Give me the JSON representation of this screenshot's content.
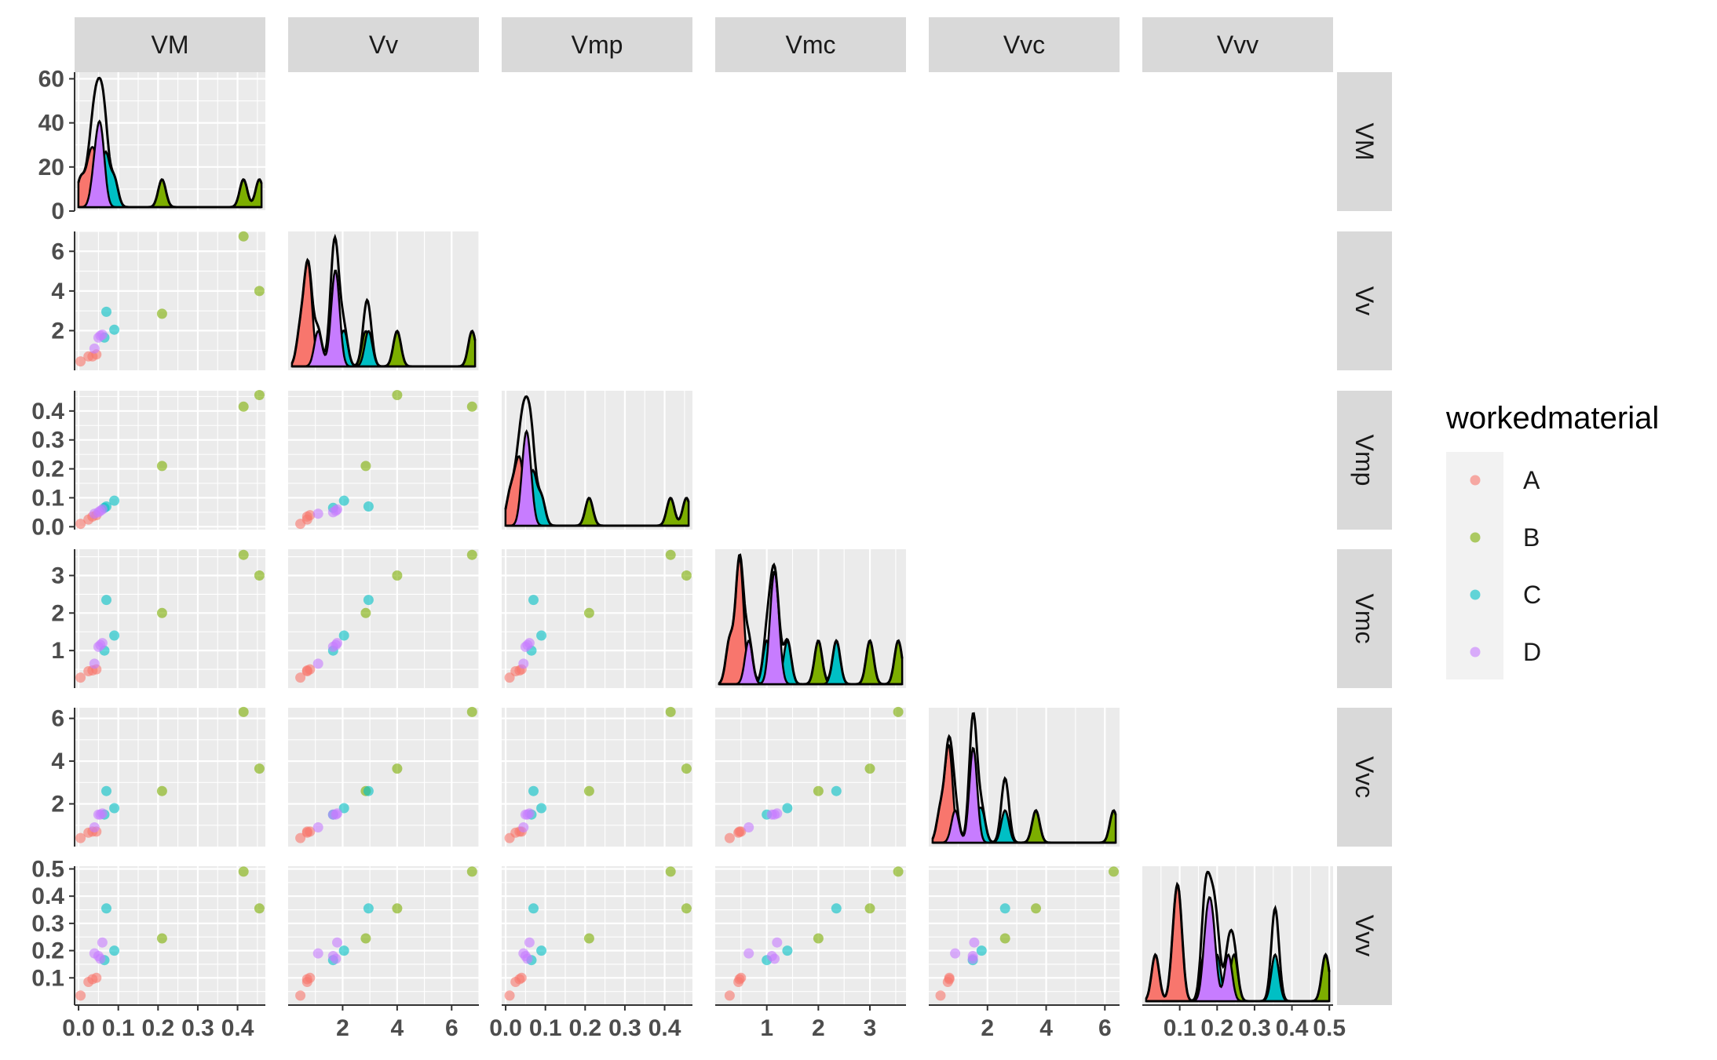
{
  "chart_data": {
    "type": "scatter",
    "variables": [
      "VM",
      "Vv",
      "Vmp",
      "Vmc",
      "Vvc",
      "Vvv"
    ],
    "layout": "lower-triangle scatterplot matrix with density plots on the diagonal",
    "legend": {
      "title": "workedmaterial",
      "placement": "right",
      "labels": [
        "A",
        "B",
        "C",
        "D"
      ]
    },
    "colors": {
      "A": "#F8766D",
      "B": "#7CAE00",
      "C": "#00BFC4",
      "D": "#C77CFF"
    },
    "panel_background": "#EBEBEB",
    "strip_background": "#D9D9D9",
    "grid": true,
    "axes": {
      "VM": {
        "range": [
          -0.01,
          0.47
        ],
        "ticks": [
          0.0,
          0.1,
          0.2,
          0.3,
          0.4
        ],
        "tick_labels": [
          "0.0",
          "0.1",
          "0.2",
          "0.3",
          "0.4"
        ]
      },
      "Vv": {
        "range": [
          0.0,
          7.0
        ],
        "ticks": [
          2,
          4,
          6
        ],
        "tick_labels": [
          "2",
          "4",
          "6"
        ]
      },
      "Vmp": {
        "range": [
          -0.01,
          0.47
        ],
        "ticks": [
          0.0,
          0.1,
          0.2,
          0.3,
          0.4
        ],
        "tick_labels": [
          "0.0",
          "0.1",
          "0.2",
          "0.3",
          "0.4"
        ]
      },
      "Vmc": {
        "range": [
          0.0,
          3.7
        ],
        "ticks": [
          1,
          2,
          3
        ],
        "tick_labels": [
          "1",
          "2",
          "3"
        ]
      },
      "Vvc": {
        "range": [
          0.0,
          6.5
        ],
        "ticks": [
          2,
          4,
          6
        ],
        "tick_labels": [
          "2",
          "4",
          "6"
        ]
      },
      "Vvv": {
        "range": [
          0.0,
          0.51
        ],
        "ticks": [
          0.1,
          0.2,
          0.3,
          0.4,
          0.5
        ],
        "tick_labels": [
          "0.1",
          "0.2",
          "0.3",
          "0.4",
          "0.5"
        ]
      }
    },
    "density_axis": {
      "range": [
        0,
        63
      ],
      "ticks": [
        0,
        20,
        40,
        60
      ],
      "tick_labels": [
        "0",
        "20",
        "40",
        "60"
      ]
    },
    "points": [
      {
        "group": "A",
        "VM": 0.005,
        "Vv": 0.45,
        "Vmp": 0.01,
        "Vmc": 0.28,
        "Vvc": 0.4,
        "Vvv": 0.035
      },
      {
        "group": "A",
        "VM": 0.025,
        "Vv": 0.7,
        "Vmp": 0.025,
        "Vmc": 0.45,
        "Vvc": 0.65,
        "Vvv": 0.085
      },
      {
        "group": "A",
        "VM": 0.035,
        "Vv": 0.7,
        "Vmp": 0.035,
        "Vmc": 0.47,
        "Vvc": 0.7,
        "Vvv": 0.095
      },
      {
        "group": "A",
        "VM": 0.045,
        "Vv": 0.8,
        "Vmp": 0.04,
        "Vmc": 0.5,
        "Vvc": 0.7,
        "Vvv": 0.1
      },
      {
        "group": "B",
        "VM": 0.21,
        "Vv": 2.85,
        "Vmp": 0.21,
        "Vmc": 2.0,
        "Vvc": 2.6,
        "Vvv": 0.245
      },
      {
        "group": "B",
        "VM": 0.415,
        "Vv": 6.75,
        "Vmp": 0.415,
        "Vmc": 3.55,
        "Vvc": 6.3,
        "Vvv": 0.49
      },
      {
        "group": "B",
        "VM": 0.455,
        "Vv": 4.0,
        "Vmp": 0.455,
        "Vmc": 3.0,
        "Vvc": 3.65,
        "Vvv": 0.355
      },
      {
        "group": "C",
        "VM": 0.065,
        "Vv": 1.65,
        "Vmp": 0.065,
        "Vmc": 1.0,
        "Vvc": 1.5,
        "Vvv": 0.165
      },
      {
        "group": "C",
        "VM": 0.07,
        "Vv": 2.95,
        "Vmp": 0.07,
        "Vmc": 2.35,
        "Vvc": 2.6,
        "Vvv": 0.355
      },
      {
        "group": "C",
        "VM": 0.09,
        "Vv": 2.05,
        "Vmp": 0.09,
        "Vmc": 1.4,
        "Vvc": 1.8,
        "Vvv": 0.2
      },
      {
        "group": "D",
        "VM": 0.04,
        "Vv": 1.1,
        "Vmp": 0.045,
        "Vmc": 0.65,
        "Vvc": 0.9,
        "Vvv": 0.19
      },
      {
        "group": "D",
        "VM": 0.05,
        "Vv": 1.65,
        "Vmp": 0.05,
        "Vmc": 1.1,
        "Vvc": 1.5,
        "Vvv": 0.18
      },
      {
        "group": "D",
        "VM": 0.055,
        "Vv": 1.75,
        "Vmp": 0.055,
        "Vmc": 1.15,
        "Vvc": 1.5,
        "Vvv": 0.17
      },
      {
        "group": "D",
        "VM": 0.06,
        "Vv": 1.8,
        "Vmp": 0.06,
        "Vmc": 1.2,
        "Vvc": 1.55,
        "Vvv": 0.23
      }
    ]
  }
}
